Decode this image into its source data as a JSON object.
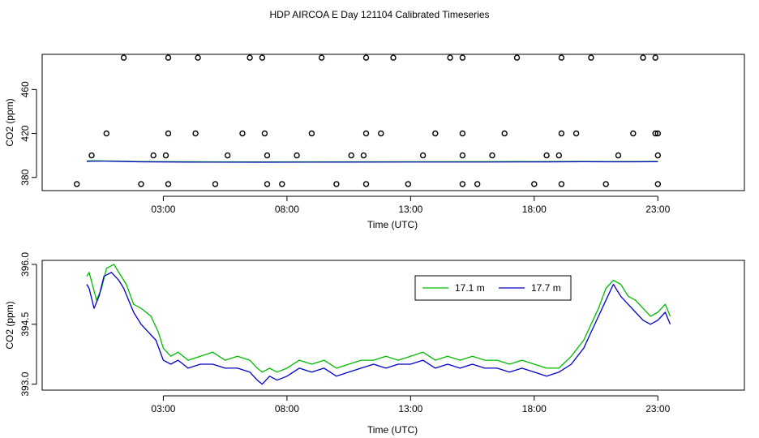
{
  "page": {
    "title": "HDP AIRCOA E  Day 121104  Calibrated Timeseries"
  },
  "chart_data": [
    {
      "type": "scatter",
      "title": "HDP AIRCOA E  Day 121104  Calibrated Timeseries",
      "xlabel": "Time (UTC)",
      "ylabel": "CO2 (ppm)",
      "xlim": [
        -1.9,
        26.5
      ],
      "ylim": [
        368,
        492
      ],
      "x_ticks": [
        3,
        8,
        13,
        18,
        23
      ],
      "x_tick_labels": [
        "03:00",
        "08:00",
        "13:00",
        "18:00",
        "23:00"
      ],
      "y_ticks": [
        380,
        420,
        460
      ],
      "y_tick_labels": [
        "380",
        "420",
        "460"
      ],
      "points": [
        [
          -0.5,
          374
        ],
        [
          0.1,
          400
        ],
        [
          0.7,
          420
        ],
        [
          1.4,
          489
        ],
        [
          2.1,
          374
        ],
        [
          2.6,
          400
        ],
        [
          3.1,
          400
        ],
        [
          3.2,
          420
        ],
        [
          3.2,
          374
        ],
        [
          3.2,
          489
        ],
        [
          4.3,
          420
        ],
        [
          4.4,
          489
        ],
        [
          5.1,
          374
        ],
        [
          5.6,
          400
        ],
        [
          6.2,
          420
        ],
        [
          6.5,
          489
        ],
        [
          7.0,
          489
        ],
        [
          7.1,
          420
        ],
        [
          7.2,
          400
        ],
        [
          7.2,
          374
        ],
        [
          7.8,
          374
        ],
        [
          8.4,
          400
        ],
        [
          9.0,
          420
        ],
        [
          9.4,
          489
        ],
        [
          10.0,
          374
        ],
        [
          10.6,
          400
        ],
        [
          11.1,
          400
        ],
        [
          11.2,
          374
        ],
        [
          11.2,
          420
        ],
        [
          11.2,
          489
        ],
        [
          11.8,
          420
        ],
        [
          12.3,
          489
        ],
        [
          12.9,
          374
        ],
        [
          13.5,
          400
        ],
        [
          14.0,
          420
        ],
        [
          14.6,
          489
        ],
        [
          15.1,
          489
        ],
        [
          15.1,
          420
        ],
        [
          15.1,
          400
        ],
        [
          15.1,
          374
        ],
        [
          15.7,
          374
        ],
        [
          16.3,
          400
        ],
        [
          16.8,
          420
        ],
        [
          17.3,
          489
        ],
        [
          18.0,
          374
        ],
        [
          18.5,
          400
        ],
        [
          19.0,
          400
        ],
        [
          19.1,
          420
        ],
        [
          19.1,
          374
        ],
        [
          19.1,
          489
        ],
        [
          19.7,
          420
        ],
        [
          20.3,
          489
        ],
        [
          20.9,
          374
        ],
        [
          21.4,
          400
        ],
        [
          22.0,
          420
        ],
        [
          22.4,
          489
        ],
        [
          22.9,
          489
        ],
        [
          22.9,
          420
        ],
        [
          23.0,
          420
        ],
        [
          23.0,
          400
        ],
        [
          23.0,
          374
        ]
      ],
      "series": [
        {
          "name": "17.1 m",
          "color": "#00bb00",
          "points": [
            [
              -0.1,
              395.1
            ],
            [
              0.1,
              395.2
            ],
            [
              0.6,
              395.1
            ],
            [
              1.2,
              394.9
            ],
            [
              2.0,
              394.5
            ],
            [
              4.0,
              394.3
            ],
            [
              7.0,
              394.1
            ],
            [
              10.0,
              394.2
            ],
            [
              13.0,
              394.3
            ],
            [
              16.0,
              394.4
            ],
            [
              18.5,
              394.5
            ],
            [
              20.0,
              394.6
            ],
            [
              21.0,
              394.4
            ],
            [
              22.0,
              394.5
            ],
            [
              22.8,
              394.6
            ],
            [
              23.0,
              394.6
            ]
          ]
        },
        {
          "name": "17.7 m",
          "color": "#0000cc",
          "points": [
            [
              -0.1,
              394.6
            ],
            [
              0.1,
              394.7
            ],
            [
              0.6,
              394.8
            ],
            [
              1.2,
              394.6
            ],
            [
              2.0,
              394.2
            ],
            [
              4.0,
              393.9
            ],
            [
              7.0,
              393.8
            ],
            [
              10.0,
              393.9
            ],
            [
              13.0,
              394.0
            ],
            [
              16.0,
              394.0
            ],
            [
              18.5,
              394.1
            ],
            [
              20.0,
              394.3
            ],
            [
              21.0,
              394.2
            ],
            [
              22.0,
              394.2
            ],
            [
              22.8,
              394.3
            ],
            [
              23.0,
              394.3
            ]
          ]
        }
      ]
    },
    {
      "type": "line",
      "xlabel": "Time (UTC)",
      "ylabel": "CO2 (ppm)",
      "xlim": [
        -1.9,
        26.5
      ],
      "ylim": [
        392.85,
        396.1
      ],
      "x_ticks": [
        3,
        8,
        13,
        18,
        23
      ],
      "x_tick_labels": [
        "03:00",
        "08:00",
        "13:00",
        "18:00",
        "23:00"
      ],
      "y_ticks": [
        393.0,
        394.5,
        396.0
      ],
      "y_tick_labels": [
        "393.0",
        "394.5",
        "396.0"
      ],
      "legend": {
        "position": "top-right",
        "entries": [
          "17.1 m",
          "17.7 m"
        ]
      },
      "series": [
        {
          "name": "17.1 m",
          "color": "#00bb00",
          "points": [
            [
              -0.1,
              395.7
            ],
            [
              0.0,
              395.8
            ],
            [
              0.3,
              395.1
            ],
            [
              0.5,
              395.4
            ],
            [
              0.7,
              395.9
            ],
            [
              1.0,
              396.0
            ],
            [
              1.2,
              395.8
            ],
            [
              1.5,
              395.5
            ],
            [
              1.8,
              395.0
            ],
            [
              2.1,
              394.9
            ],
            [
              2.5,
              394.7
            ],
            [
              2.8,
              394.3
            ],
            [
              3.0,
              393.9
            ],
            [
              3.3,
              393.7
            ],
            [
              3.6,
              393.8
            ],
            [
              4.0,
              393.6
            ],
            [
              4.5,
              393.7
            ],
            [
              5.0,
              393.8
            ],
            [
              5.5,
              393.6
            ],
            [
              6.0,
              393.7
            ],
            [
              6.5,
              393.6
            ],
            [
              6.8,
              393.4
            ],
            [
              7.0,
              393.3
            ],
            [
              7.3,
              393.4
            ],
            [
              7.6,
              393.3
            ],
            [
              8.0,
              393.4
            ],
            [
              8.5,
              393.6
            ],
            [
              9.0,
              393.5
            ],
            [
              9.5,
              393.6
            ],
            [
              10.0,
              393.4
            ],
            [
              10.5,
              393.5
            ],
            [
              11.0,
              393.6
            ],
            [
              11.5,
              393.6
            ],
            [
              12.0,
              393.7
            ],
            [
              12.5,
              393.6
            ],
            [
              13.0,
              393.7
            ],
            [
              13.5,
              393.8
            ],
            [
              14.0,
              393.6
            ],
            [
              14.5,
              393.7
            ],
            [
              15.0,
              393.6
            ],
            [
              15.5,
              393.7
            ],
            [
              16.0,
              393.6
            ],
            [
              16.5,
              393.6
            ],
            [
              17.0,
              393.5
            ],
            [
              17.5,
              393.6
            ],
            [
              18.0,
              393.5
            ],
            [
              18.5,
              393.4
            ],
            [
              19.0,
              393.4
            ],
            [
              19.5,
              393.7
            ],
            [
              20.0,
              394.1
            ],
            [
              20.3,
              394.5
            ],
            [
              20.6,
              394.9
            ],
            [
              20.9,
              395.4
            ],
            [
              21.2,
              395.6
            ],
            [
              21.5,
              395.5
            ],
            [
              21.8,
              395.2
            ],
            [
              22.1,
              395.1
            ],
            [
              22.4,
              394.9
            ],
            [
              22.7,
              394.7
            ],
            [
              23.0,
              394.8
            ],
            [
              23.3,
              395.0
            ],
            [
              23.5,
              394.7
            ]
          ]
        },
        {
          "name": "17.7 m",
          "color": "#0000cc",
          "points": [
            [
              -0.1,
              395.5
            ],
            [
              0.0,
              395.4
            ],
            [
              0.2,
              394.9
            ],
            [
              0.4,
              395.2
            ],
            [
              0.6,
              395.7
            ],
            [
              0.9,
              395.8
            ],
            [
              1.2,
              395.6
            ],
            [
              1.4,
              395.4
            ],
            [
              1.8,
              394.8
            ],
            [
              2.1,
              394.5
            ],
            [
              2.4,
              394.3
            ],
            [
              2.7,
              394.1
            ],
            [
              3.0,
              393.6
            ],
            [
              3.3,
              393.5
            ],
            [
              3.6,
              393.6
            ],
            [
              4.0,
              393.4
            ],
            [
              4.5,
              393.5
            ],
            [
              5.0,
              393.5
            ],
            [
              5.5,
              393.4
            ],
            [
              6.0,
              393.4
            ],
            [
              6.5,
              393.3
            ],
            [
              6.8,
              393.1
            ],
            [
              7.0,
              393.0
            ],
            [
              7.3,
              393.2
            ],
            [
              7.6,
              393.1
            ],
            [
              8.0,
              393.2
            ],
            [
              8.5,
              393.4
            ],
            [
              9.0,
              393.3
            ],
            [
              9.5,
              393.4
            ],
            [
              10.0,
              393.2
            ],
            [
              10.5,
              393.3
            ],
            [
              11.0,
              393.4
            ],
            [
              11.5,
              393.5
            ],
            [
              12.0,
              393.4
            ],
            [
              12.5,
              393.5
            ],
            [
              13.0,
              393.5
            ],
            [
              13.5,
              393.6
            ],
            [
              14.0,
              393.4
            ],
            [
              14.5,
              393.5
            ],
            [
              15.0,
              393.4
            ],
            [
              15.5,
              393.5
            ],
            [
              16.0,
              393.4
            ],
            [
              16.5,
              393.4
            ],
            [
              17.0,
              393.3
            ],
            [
              17.5,
              393.4
            ],
            [
              18.0,
              393.3
            ],
            [
              18.5,
              393.2
            ],
            [
              19.0,
              393.3
            ],
            [
              19.5,
              393.5
            ],
            [
              20.0,
              393.9
            ],
            [
              20.3,
              394.3
            ],
            [
              20.6,
              394.7
            ],
            [
              20.9,
              395.1
            ],
            [
              21.2,
              395.5
            ],
            [
              21.5,
              395.2
            ],
            [
              21.8,
              395.0
            ],
            [
              22.1,
              394.8
            ],
            [
              22.4,
              394.6
            ],
            [
              22.7,
              394.5
            ],
            [
              23.0,
              394.6
            ],
            [
              23.3,
              394.8
            ],
            [
              23.5,
              394.5
            ]
          ]
        }
      ]
    }
  ]
}
